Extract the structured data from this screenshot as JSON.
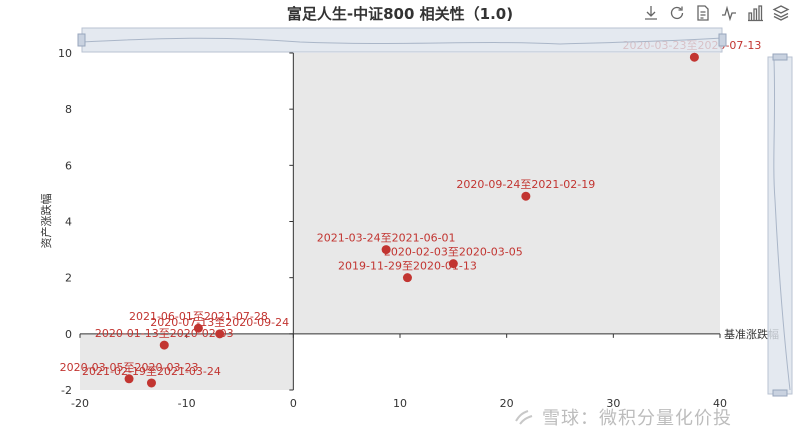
{
  "title": "富足人生-中证800 相关性（1.0)",
  "toolbox": [
    {
      "name": "download-icon"
    },
    {
      "name": "refresh-icon"
    },
    {
      "name": "data-view-icon"
    },
    {
      "name": "line-chart-icon"
    },
    {
      "name": "bar-chart-icon"
    },
    {
      "name": "stack-icon"
    }
  ],
  "watermark": "雪球：微积分量化价投",
  "colors": {
    "point": "#c23531",
    "label": "#c23531",
    "zoom_fill": "#dde3ec",
    "zoom_stroke": "#b8c2d2",
    "shade": "#e8e8e8"
  },
  "chart_data": {
    "type": "scatter",
    "title": "富足人生-中证800 相关性（1.0)",
    "xlabel": "基准涨跌幅",
    "ylabel": "资产涨跌幅",
    "xlim": [
      -20,
      40
    ],
    "ylim": [
      -2,
      10
    ],
    "xticks": [
      "-20",
      "-10",
      "0",
      "10",
      "20",
      "30",
      "40"
    ],
    "yticks": [
      "-2",
      "0",
      "2",
      "4",
      "6",
      "8",
      "10"
    ],
    "points": [
      {
        "label": "2020-03-23至2020-07-13",
        "x": 37.6,
        "y": 9.85
      },
      {
        "label": "2020-09-24至2021-02-19",
        "x": 21.8,
        "y": 4.9
      },
      {
        "label": "2021-03-24至2021-06-01",
        "x": 8.7,
        "y": 3.0
      },
      {
        "label": "2020-02-03至2020-03-05",
        "x": 15.0,
        "y": 2.5
      },
      {
        "label": "2019-11-29至2020-01-13",
        "x": 10.7,
        "y": 2.0
      },
      {
        "label": "2021-06-01至2021-07-28",
        "x": -8.9,
        "y": 0.2
      },
      {
        "label": "2020-07-13至2020-09-24",
        "x": -6.9,
        "y": 0.0
      },
      {
        "label": "2020-01-13至2020-02-03",
        "x": -12.1,
        "y": -0.4
      },
      {
        "label": "2020-03-05至2020-03-23",
        "x": -15.4,
        "y": -1.6
      },
      {
        "label": "2021-02-19至2021-03-24",
        "x": -13.3,
        "y": -1.75
      }
    ]
  }
}
